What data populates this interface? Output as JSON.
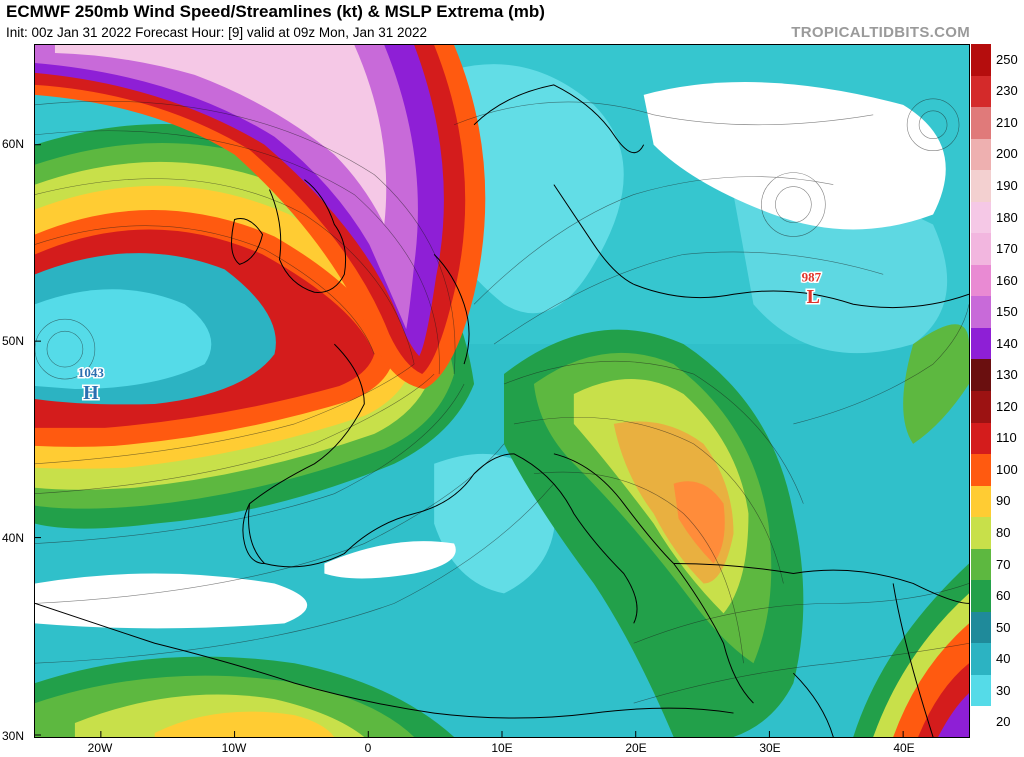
{
  "header": {
    "title": "ECMWF 250mb Wind Speed/Streamlines (kt) & MSLP Extrema (mb)",
    "subtitle": "Init: 00z Jan 31 2022   Forecast Hour: [9]   valid at 09z Mon, Jan 31 2022",
    "credit": "TROPICALTIDBITS.COM"
  },
  "map": {
    "lat_labels": [
      "60N",
      "50N",
      "40N",
      "30N"
    ],
    "lon_labels": [
      "20W",
      "10W",
      "0",
      "10E",
      "20E",
      "30E",
      "40E"
    ],
    "pressure_centers": [
      {
        "value": "1043",
        "letter": "H",
        "color": "#2b6fb0"
      },
      {
        "value": "987",
        "letter": "L",
        "color": "#e0342a"
      }
    ]
  },
  "colorbar": {
    "labels": [
      "250",
      "230",
      "210",
      "200",
      "190",
      "180",
      "170",
      "160",
      "150",
      "140",
      "130",
      "120",
      "110",
      "100",
      "90",
      "80",
      "70",
      "60",
      "50",
      "40",
      "30",
      "20"
    ],
    "colors": [
      "#b50d0d",
      "#d42a2a",
      "#e07a7a",
      "#eeb0b0",
      "#f3d0d0",
      "#f5c8e6",
      "#f2b6df",
      "#e98ad3",
      "#c86ad9",
      "#8e1fd6",
      "#6a0f0f",
      "#9c1212",
      "#d41c1c",
      "#ff5a10",
      "#ffcc33",
      "#c8e04a",
      "#5db840",
      "#22a04a",
      "#1f8a9a",
      "#2cb3c2",
      "#55dbe8",
      "#ffffff"
    ]
  }
}
